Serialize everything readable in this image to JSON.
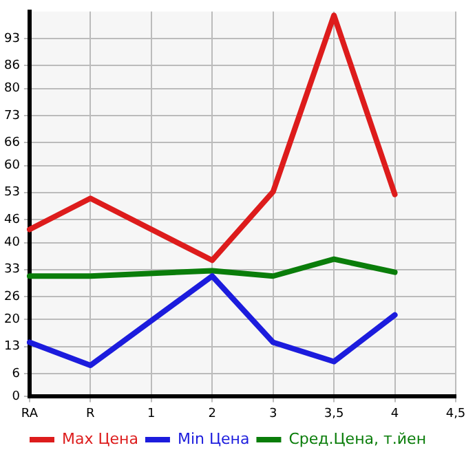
{
  "chart_data": {
    "type": "line",
    "categories": [
      "RA",
      "R",
      "1",
      "2",
      "3",
      "3,5",
      "4",
      "4,5"
    ],
    "series": [
      {
        "name": "Max Цена",
        "color": "#dd1c1c",
        "values": [
          43.4,
          51.5,
          null,
          35.4,
          53.2,
          99,
          52.5,
          null
        ]
      },
      {
        "name": "Min Цена",
        "color": "#1c1cdd",
        "values": [
          14.1,
          8.1,
          null,
          31.3,
          14.1,
          9.1,
          21.2,
          null
        ]
      },
      {
        "name": "Сред.Цена, т.йен",
        "color": "#0a7d0a",
        "values": [
          31.3,
          31.3,
          null,
          32.7,
          31.3,
          35.7,
          32.3,
          null
        ]
      }
    ],
    "ylim": [
      0,
      100
    ],
    "yticks": [
      0,
      6,
      13,
      20,
      26,
      33,
      40,
      46,
      53,
      60,
      66,
      73,
      80,
      86,
      93
    ],
    "grid": true,
    "legend": "bottom",
    "marker": "none",
    "line_style": "solid"
  }
}
